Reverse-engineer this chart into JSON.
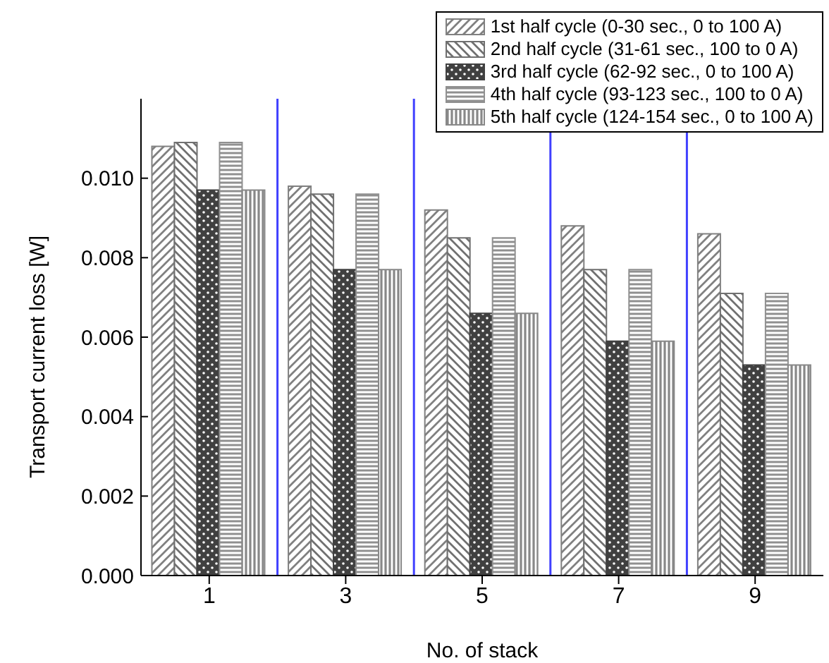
{
  "chart_data": {
    "type": "bar",
    "xlabel": "No. of stack",
    "ylabel": "Transport current loss [W]",
    "x": [
      1,
      3,
      5,
      7,
      9
    ],
    "xlim": [
      0,
      10
    ],
    "xticks": [
      1,
      3,
      5,
      7,
      9
    ],
    "ylim": [
      0,
      0.012
    ],
    "yticks": [
      {
        "value": 0,
        "label": "0.000"
      },
      {
        "value": 0.002,
        "label": "0.002"
      },
      {
        "value": 0.004,
        "label": "0.004"
      },
      {
        "value": 0.006,
        "label": "0.006"
      },
      {
        "value": 0.008,
        "label": "0.008"
      },
      {
        "value": 0.01,
        "label": "0.010"
      }
    ],
    "series": [
      {
        "name": "1st half cycle (0-30 sec., 0 to 100 A)",
        "color": "#808080",
        "values": [
          0.0108,
          0.0098,
          0.0092,
          0.0088,
          0.0086
        ]
      },
      {
        "name": "2nd half cycle (31-61 sec., 100 to 0 A)",
        "color": "#707070",
        "values": [
          0.0109,
          0.0096,
          0.0085,
          0.0077,
          0.0071
        ]
      },
      {
        "name": "3rd half cycle (62-92 sec., 0 to 100 A)",
        "color": "#404040",
        "values": [
          0.0097,
          0.0077,
          0.0066,
          0.0059,
          0.0053
        ]
      },
      {
        "name": "4th half cycle (93-123 sec., 100 to 0 A)",
        "color": "#909090",
        "values": [
          0.0109,
          0.0096,
          0.0085,
          0.0077,
          0.0071
        ]
      },
      {
        "name": "5th half cycle (124-154 sec., 0 to 100 A)",
        "color": "#888888",
        "values": [
          0.0097,
          0.0077,
          0.0066,
          0.0059,
          0.0053
        ]
      }
    ],
    "ref_lines": [
      {
        "axis": "x",
        "value": 2,
        "color": "#4040ff"
      },
      {
        "axis": "x",
        "value": 4,
        "color": "#4040ff"
      },
      {
        "axis": "x",
        "value": 6,
        "color": "#4040ff"
      },
      {
        "axis": "x",
        "value": 8,
        "color": "#4040ff"
      }
    ],
    "legend": "top right",
    "grid": false
  }
}
